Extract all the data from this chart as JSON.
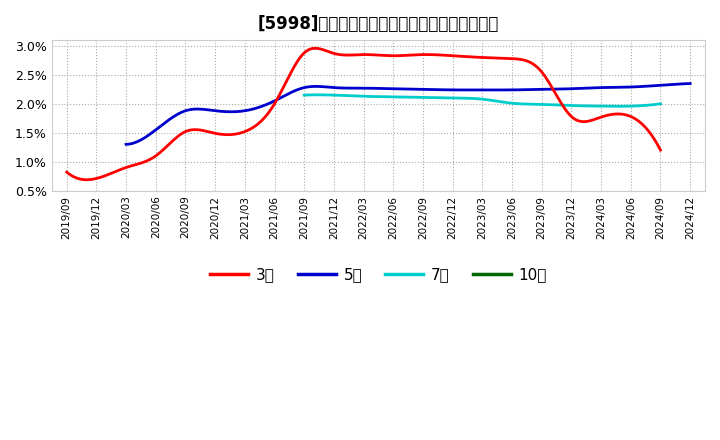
{
  "title": "[5998]　当期純利益マージンの標準偏差の推移",
  "ylim": [
    0.005,
    0.031
  ],
  "yticks": [
    0.005,
    0.01,
    0.015,
    0.02,
    0.025,
    0.03
  ],
  "ytick_labels": [
    "0.5%",
    "1.0%",
    "1.5%",
    "2.0%",
    "2.5%",
    "3.0%"
  ],
  "background_color": "#ffffff",
  "plot_bg_color": "#ffffff",
  "x_labels": [
    "2019/09",
    "2019/12",
    "2020/03",
    "2020/06",
    "2020/09",
    "2020/12",
    "2021/03",
    "2021/06",
    "2021/09",
    "2021/12",
    "2022/03",
    "2022/06",
    "2022/09",
    "2022/12",
    "2023/03",
    "2023/06",
    "2023/09",
    "2023/12",
    "2024/03",
    "2024/06",
    "2024/09",
    "2024/12"
  ],
  "series": {
    "3年": {
      "color": "#ff0000",
      "data": [
        0.0082,
        0.0071,
        0.009,
        0.011,
        0.0152,
        0.0149,
        0.0152,
        0.02,
        0.0288,
        0.0287,
        0.0285,
        0.0283,
        0.0285,
        0.0283,
        0.028,
        0.0278,
        0.0255,
        0.0178,
        0.0177,
        0.0178,
        0.012,
        null
      ]
    },
    "5年": {
      "color": "#0000cc",
      "data": [
        null,
        null,
        0.013,
        0.0155,
        0.0188,
        0.0188,
        0.0188,
        0.0205,
        0.0228,
        0.0228,
        0.0227,
        0.0226,
        0.0225,
        0.0224,
        0.0224,
        0.0224,
        0.0225,
        0.0226,
        0.0228,
        0.0229,
        0.0232,
        0.0235
      ]
    },
    "7年": {
      "color": "#00cccc",
      "data": [
        null,
        null,
        null,
        null,
        null,
        null,
        null,
        null,
        0.0215,
        0.0215,
        0.0213,
        0.0212,
        0.0211,
        0.021,
        0.0208,
        0.0201,
        0.0199,
        0.0197,
        0.0196,
        0.0196,
        0.02,
        null
      ]
    },
    "10年": {
      "color": "#006600",
      "data": [
        null,
        null,
        null,
        null,
        null,
        null,
        null,
        null,
        null,
        null,
        null,
        null,
        null,
        null,
        null,
        null,
        null,
        null,
        null,
        null,
        null,
        null
      ]
    }
  },
  "legend_labels": [
    "3年",
    "5年",
    "7年",
    "10年"
  ],
  "legend_colors": [
    "#ff0000",
    "#0000cc",
    "#00cccc",
    "#006600"
  ]
}
